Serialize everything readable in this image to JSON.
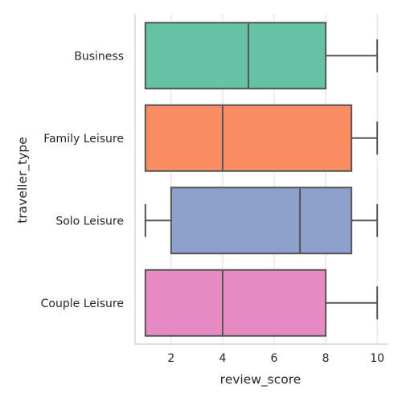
{
  "chart_data": {
    "type": "box",
    "orientation": "horizontal",
    "xlabel": "review_score",
    "ylabel": "traveller_type",
    "xlim": [
      0.6,
      10.4
    ],
    "xticks": [
      2,
      4,
      6,
      8,
      10
    ],
    "grid": "vertical",
    "categories": [
      "Business",
      "Family Leisure",
      "Solo Leisure",
      "Couple Leisure"
    ],
    "boxes": [
      {
        "category": "Business",
        "whisker_low": 1,
        "q1": 1,
        "median": 5,
        "q3": 8,
        "whisker_high": 10,
        "color": "#66c2a5"
      },
      {
        "category": "Family Leisure",
        "whisker_low": 1,
        "q1": 1,
        "median": 4,
        "q3": 9,
        "whisker_high": 10,
        "color": "#fc8d62"
      },
      {
        "category": "Solo Leisure",
        "whisker_low": 1,
        "q1": 2,
        "median": 7,
        "q3": 9,
        "whisker_high": 10,
        "color": "#8da0cb"
      },
      {
        "category": "Couple Leisure",
        "whisker_low": 1,
        "q1": 1,
        "median": 4,
        "q3": 8,
        "whisker_high": 10,
        "color": "#e78ac3"
      }
    ]
  }
}
